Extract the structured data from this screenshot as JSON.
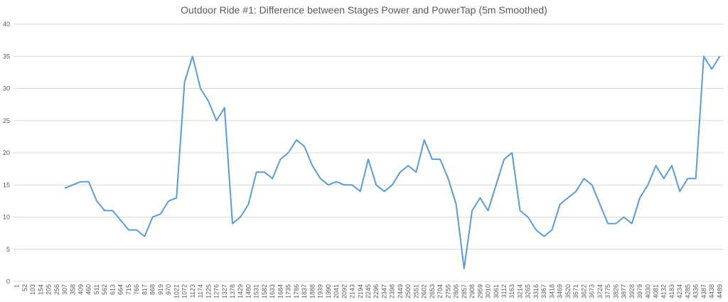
{
  "chart_data": {
    "type": "line",
    "title": "Outdoor Ride #1: Difference between Stages Power and PowerTap (5m Smoothed)",
    "categories": [
      "1",
      "52",
      "103",
      "154",
      "205",
      "256",
      "307",
      "358",
      "409",
      "460",
      "511",
      "562",
      "613",
      "664",
      "715",
      "766",
      "817",
      "868",
      "919",
      "970",
      "1021",
      "1072",
      "1123",
      "1174",
      "1225",
      "1276",
      "1327",
      "1378",
      "1429",
      "1480",
      "1531",
      "1582",
      "1633",
      "1684",
      "1735",
      "1786",
      "1837",
      "1888",
      "1939",
      "1990",
      "2041",
      "2092",
      "2143",
      "2194",
      "2245",
      "2296",
      "2347",
      "2398",
      "2449",
      "2500",
      "2551",
      "2602",
      "2653",
      "2704",
      "2755",
      "2806",
      "2857",
      "2908",
      "2959",
      "3010",
      "3061",
      "3112",
      "3163",
      "3214",
      "3265",
      "3316",
      "3367",
      "3418",
      "3469",
      "3520",
      "3571",
      "3622",
      "3673",
      "3724",
      "3775",
      "3826",
      "3877",
      "3928",
      "3979",
      "4030",
      "4081",
      "4132",
      "4183",
      "4234",
      "4285",
      "4336",
      "4387",
      "4438",
      "4489"
    ],
    "values": [
      null,
      null,
      null,
      null,
      null,
      null,
      14.5,
      15,
      15.5,
      15.5,
      12.5,
      11,
      11,
      9.5,
      8,
      8,
      7,
      10,
      10.5,
      12.5,
      13,
      31,
      35,
      30,
      28,
      25,
      27,
      9,
      10,
      12,
      17,
      17,
      16,
      19,
      20,
      22,
      21,
      18,
      16,
      15,
      15.5,
      15,
      15,
      14,
      19,
      15,
      14,
      15,
      17,
      18,
      17,
      22,
      19,
      19,
      16,
      12,
      2,
      11,
      13,
      11,
      15,
      19,
      20,
      11,
      10,
      8,
      7,
      8,
      12,
      13,
      14,
      16,
      15,
      12,
      9,
      9,
      10,
      9,
      13,
      15,
      18,
      16,
      18,
      14,
      16,
      16,
      35,
      33,
      35
    ],
    "color": "#5b9bd5",
    "ylim": [
      0,
      40
    ],
    "yticks": [
      0,
      5,
      10,
      15,
      20,
      25,
      30,
      35,
      40
    ],
    "grid": true
  }
}
